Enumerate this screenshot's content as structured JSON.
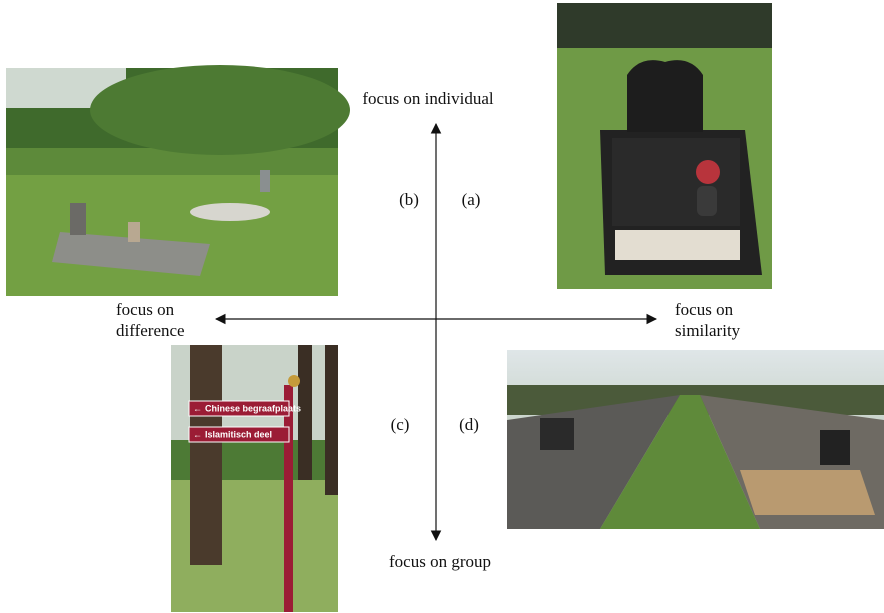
{
  "axes": {
    "top": "focus on individual",
    "bottom": "focus on group",
    "left": [
      "focus on",
      "difference"
    ],
    "right": [
      "focus on",
      "similarity"
    ]
  },
  "quadrants": {
    "a": "(a)",
    "b": "(b)",
    "c": "(c)",
    "d": "(d)"
  },
  "sign": [
    "Chinese begraafplaats",
    "Islamitisch deel"
  ]
}
